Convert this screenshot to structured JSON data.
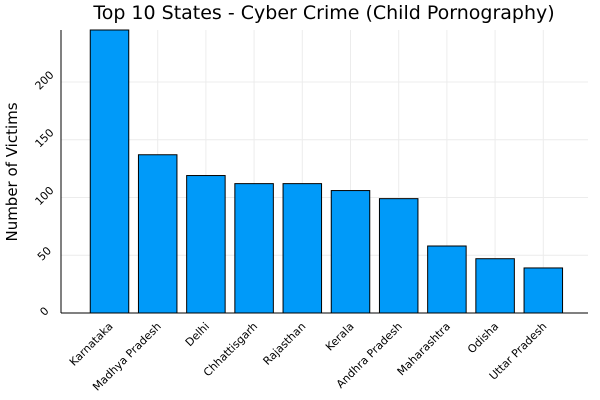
{
  "chart_data": {
    "type": "bar",
    "title": "Top 10 States - Cyber Crime (Child Pornography)",
    "xlabel": "",
    "ylabel": "Number of Victims",
    "categories": [
      "Karnataka",
      "Madhya Pradesh",
      "Delhi",
      "Chhattisgarh",
      "Rajasthan",
      "Kerala",
      "Andhra Pradesh",
      "Maharashtra",
      "Odisha",
      "Uttar Pradesh"
    ],
    "values": [
      245,
      137,
      119,
      112,
      112,
      106,
      99,
      58,
      47,
      39
    ],
    "ylim": [
      0,
      245
    ],
    "yticks": [
      0,
      50,
      100,
      150,
      200
    ],
    "grid": true,
    "legend": "none",
    "colors": {
      "bar": "#009af9",
      "grid": "#ececec"
    }
  }
}
